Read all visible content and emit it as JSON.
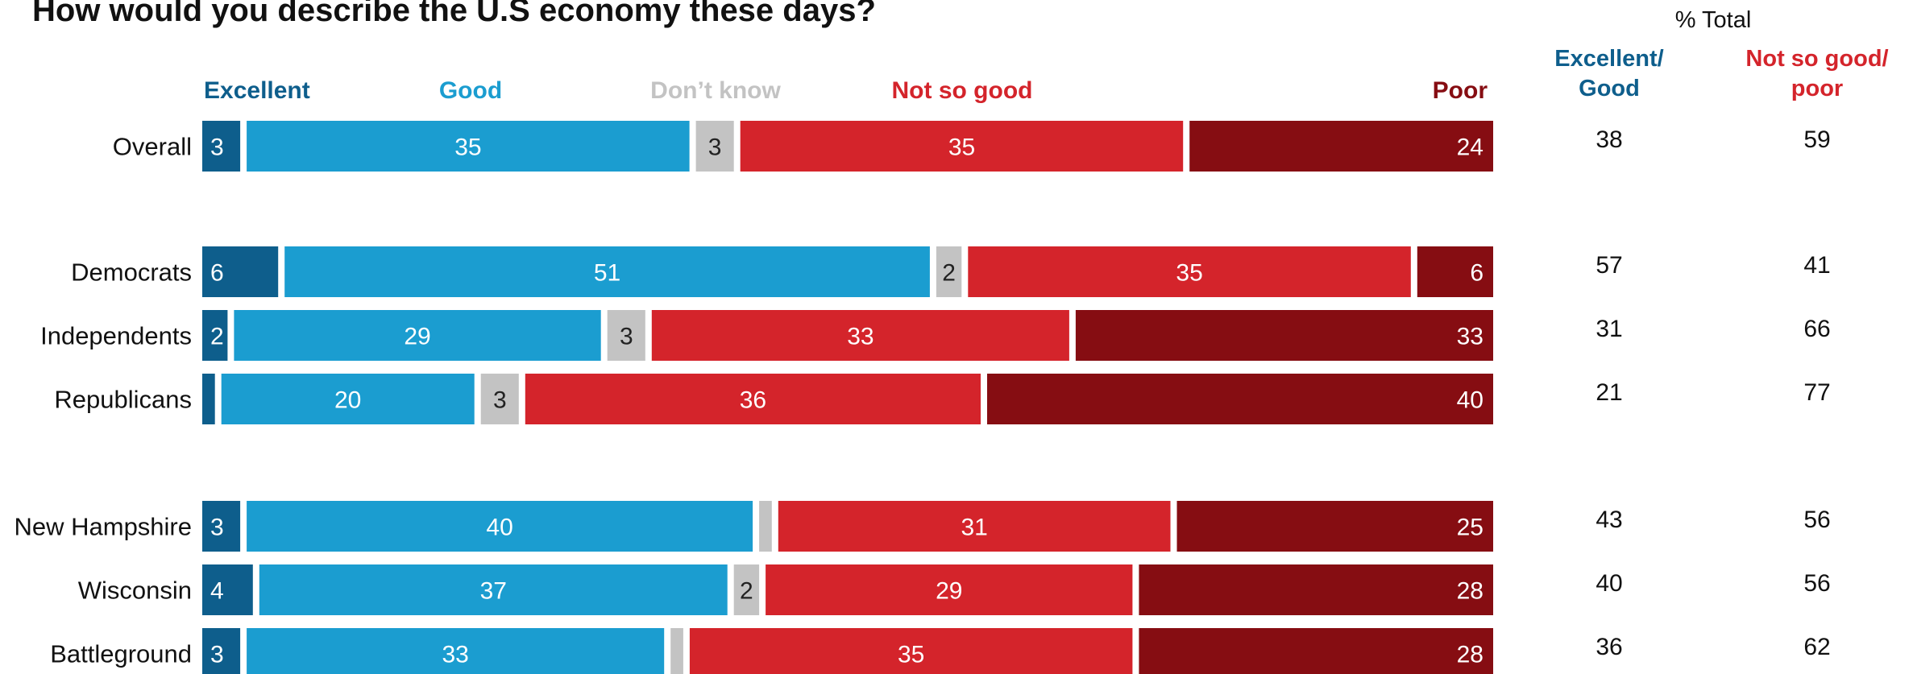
{
  "chart_data": {
    "type": "bar",
    "orientation": "horizontal",
    "stacked": true,
    "title": "How would you describe the U.S economy these days?",
    "xlim": [
      0,
      100
    ],
    "legend_placement": "top",
    "categories": [
      "Overall",
      "Democrats",
      "Independents",
      "Republicans",
      "New Hampshire",
      "Wisconsin",
      "Battleground"
    ],
    "groups": [
      [
        0
      ],
      [
        1,
        2,
        3
      ],
      [
        4,
        5,
        6
      ]
    ],
    "series": [
      {
        "name": "Excellent",
        "color": "#0e5e8c",
        "label_color": "#ffffff",
        "values": [
          3,
          6,
          2,
          1,
          3,
          4,
          3
        ],
        "labels": [
          "3",
          "6",
          "2",
          "",
          "3",
          "4",
          "3"
        ]
      },
      {
        "name": "Good",
        "color": "#1b9dd0",
        "label_color": "#ffffff",
        "values": [
          35,
          51,
          29,
          20,
          40,
          37,
          33
        ],
        "labels": [
          "35",
          "51",
          "29",
          "20",
          "40",
          "37",
          "33"
        ]
      },
      {
        "name": "Don’t know",
        "color": "#c3c3c3",
        "label_color": "#222222",
        "values": [
          3,
          2,
          3,
          3,
          1,
          2,
          1
        ],
        "labels": [
          "3",
          "2",
          "3",
          "3",
          "",
          "2",
          ""
        ]
      },
      {
        "name": "Not so good",
        "color": "#d4242b",
        "label_color": "#ffffff",
        "values": [
          35,
          35,
          33,
          36,
          31,
          29,
          35
        ],
        "labels": [
          "35",
          "35",
          "33",
          "36",
          "31",
          "29",
          "35"
        ]
      },
      {
        "name": "Poor",
        "color": "#860d12",
        "label_color": "#ffffff",
        "values": [
          24,
          6,
          33,
          40,
          25,
          28,
          28
        ],
        "labels": [
          "24",
          "6",
          "33",
          "40",
          "25",
          "28",
          "28"
        ]
      }
    ],
    "legend_text_colors": [
      "#0e5e8c",
      "#1b9dd0",
      "#c3c3c3",
      "#d4242b",
      "#860d12"
    ],
    "totals": {
      "title": "% Total",
      "columns": [
        {
          "heading": [
            "Excellent/",
            "Good"
          ],
          "color": "#0e5e8c",
          "values": [
            "38",
            "57",
            "31",
            "21",
            "43",
            "40",
            "36"
          ]
        },
        {
          "heading": [
            "Not so good/",
            "poor"
          ],
          "color": "#d4242b",
          "values": [
            "59",
            "41",
            "66",
            "77",
            "56",
            "56",
            "62"
          ]
        }
      ]
    }
  }
}
